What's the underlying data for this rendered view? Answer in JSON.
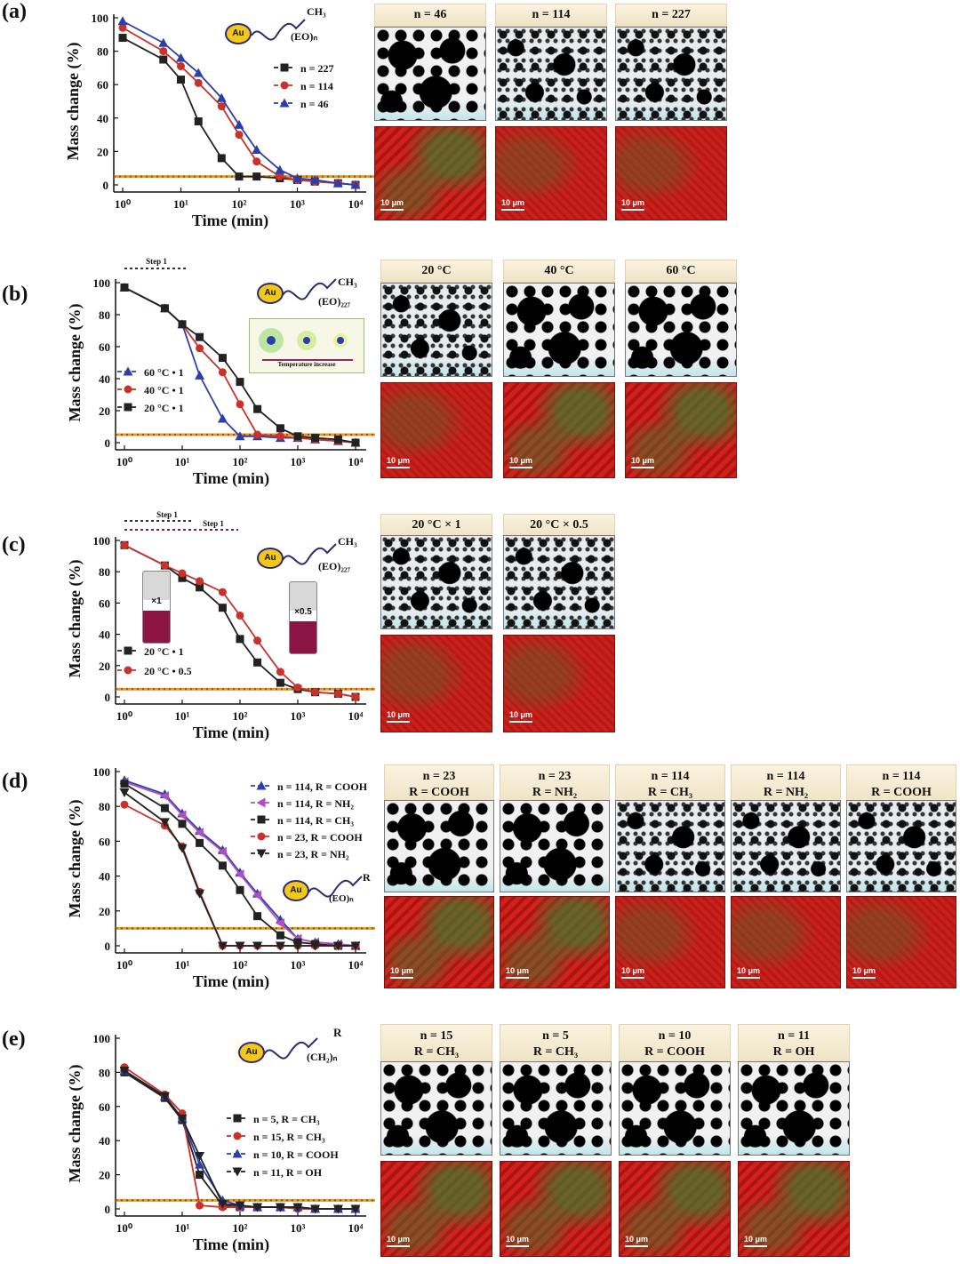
{
  "chart_data": [
    {
      "panel": "(a)",
      "type": "line",
      "xlabel": "Time (min)",
      "ylabel": "Mass change (%)",
      "xscale": "log",
      "x_ticks": [
        "10⁰",
        "10¹",
        "10²",
        "10³",
        "10⁴"
      ],
      "y_ticks": [
        "0",
        "20",
        "40",
        "60",
        "80",
        "100"
      ],
      "ylim": [
        0,
        100
      ],
      "reference_line": 5,
      "legend": [
        "n = 227",
        "n = 114",
        "n = 46"
      ],
      "series": [
        {
          "name": "n = 227",
          "color": "#222222",
          "marker": "square",
          "x": [
            1,
            5,
            10,
            20,
            50,
            100,
            200,
            500,
            1000,
            2000,
            5000,
            10000
          ],
          "y": [
            88,
            75,
            63,
            38,
            16,
            5,
            5,
            4,
            3,
            2,
            1,
            0
          ]
        },
        {
          "name": "n = 114",
          "color": "#c8322a",
          "marker": "circle",
          "x": [
            1,
            5,
            10,
            20,
            50,
            100,
            200,
            500,
            1000,
            2000,
            5000,
            10000
          ],
          "y": [
            94,
            80,
            71,
            61,
            47,
            30,
            14,
            5,
            3,
            2,
            1,
            0
          ]
        },
        {
          "name": "n = 46",
          "color": "#2c3fa8",
          "marker": "triangle",
          "x": [
            1,
            5,
            10,
            20,
            50,
            100,
            200,
            500,
            1000,
            2000,
            5000,
            10000
          ],
          "y": [
            98,
            85,
            76,
            67,
            52,
            36,
            21,
            9,
            4,
            3,
            1,
            0
          ]
        }
      ],
      "structure_label": [
        "Au",
        "CH₃",
        "(EO)ₙ"
      ],
      "micrograph_headers": [
        "n = 46",
        "n = 114",
        "n = 227"
      ]
    },
    {
      "panel": "(b)",
      "type": "line",
      "xlabel": "Time (min)",
      "ylabel": "Mass change (%)",
      "xscale": "log",
      "x_ticks": [
        "10⁰",
        "10¹",
        "10²",
        "10³",
        "10⁴"
      ],
      "y_ticks": [
        "0",
        "20",
        "40",
        "60",
        "80",
        "100"
      ],
      "ylim": [
        0,
        100
      ],
      "reference_line": 5,
      "step_label": "Step 1",
      "legend": [
        "60 °C • 1",
        "40 °C • 1",
        "20 °C • 1"
      ],
      "series": [
        {
          "name": "60 °C • 1",
          "color": "#2c3fa8",
          "marker": "triangle",
          "x": [
            1,
            5,
            10,
            20,
            50,
            100,
            200,
            500,
            1000,
            2000,
            5000,
            10000
          ],
          "y": [
            97,
            84,
            74,
            42,
            15,
            4,
            4,
            3,
            3,
            2,
            1,
            0
          ]
        },
        {
          "name": "40 °C • 1",
          "color": "#c8322a",
          "marker": "circle",
          "x": [
            1,
            5,
            10,
            20,
            50,
            100,
            200,
            500,
            1000,
            2000,
            5000,
            10000
          ],
          "y": [
            97,
            84,
            74,
            59,
            44,
            24,
            5,
            4,
            3,
            2,
            1,
            0
          ]
        },
        {
          "name": "20 °C • 1",
          "color": "#222222",
          "marker": "square",
          "x": [
            1,
            5,
            10,
            20,
            50,
            100,
            200,
            500,
            1000,
            2000,
            5000,
            10000
          ],
          "y": [
            97,
            84,
            74,
            66,
            53,
            38,
            21,
            9,
            4,
            3,
            2,
            0
          ]
        }
      ],
      "structure_label": [
        "Au",
        "CH₃",
        "(EO)₂₂₇"
      ],
      "inset_caption": "Temperature increase",
      "micrograph_headers": [
        "20 °C",
        "40 °C",
        "60 °C"
      ]
    },
    {
      "panel": "(c)",
      "type": "line",
      "xlabel": "Time (min)",
      "ylabel": "Mass change (%)",
      "xscale": "log",
      "x_ticks": [
        "10⁰",
        "10¹",
        "10²",
        "10³",
        "10⁴"
      ],
      "y_ticks": [
        "0",
        "20",
        "40",
        "60",
        "80",
        "100"
      ],
      "ylim": [
        0,
        100
      ],
      "reference_line": 5,
      "step_labels": [
        "Step 1",
        "Step 1"
      ],
      "legend": [
        "20 °C • 1",
        "20 °C • 0.5"
      ],
      "vial_labels": [
        "×1",
        "×0.5"
      ],
      "series": [
        {
          "name": "20 °C • 1",
          "color": "#222222",
          "marker": "square",
          "x": [
            1,
            5,
            10,
            20,
            50,
            100,
            200,
            500,
            1000,
            2000,
            5000,
            10000
          ],
          "y": [
            97,
            84,
            76,
            70,
            57,
            37,
            22,
            9,
            5,
            3,
            2,
            0
          ]
        },
        {
          "name": "20 °C • 0.5",
          "color": "#c8322a",
          "marker": "circle",
          "x": [
            1,
            5,
            10,
            20,
            50,
            100,
            200,
            500,
            1000,
            2000,
            5000,
            10000
          ],
          "y": [
            97,
            84,
            79,
            74,
            67,
            52,
            36,
            16,
            6,
            3,
            2,
            0
          ]
        }
      ],
      "structure_label": [
        "Au",
        "CH₃",
        "(EO)₂₂₇"
      ],
      "micrograph_headers": [
        "20 °C × 1",
        "20 °C × 0.5"
      ]
    },
    {
      "panel": "(d)",
      "type": "line",
      "xlabel": "Time (min)",
      "ylabel": "Mass change (%)",
      "xscale": "log",
      "x_ticks": [
        "10⁰",
        "10¹",
        "10²",
        "10³",
        "10⁴"
      ],
      "y_ticks": [
        "0",
        "20",
        "40",
        "60",
        "80",
        "100"
      ],
      "ylim": [
        0,
        100
      ],
      "reference_line": 10,
      "legend": [
        "n = 114, R = COOH",
        "n = 114, R = NH₂",
        "n = 114, R = CH₃",
        "n = 23, R = COOH",
        "n = 23, R = NH₂"
      ],
      "series": [
        {
          "name": "n = 114, R = COOH",
          "color": "#2c3fa8",
          "marker": "triangle",
          "x": [
            1,
            5,
            10,
            20,
            50,
            100,
            200,
            500,
            1000,
            2000,
            5000,
            10000
          ],
          "y": [
            95,
            87,
            76,
            66,
            55,
            42,
            30,
            15,
            4,
            2,
            1,
            0
          ]
        },
        {
          "name": "n = 114, R = NH₂",
          "color": "#b04fc0",
          "marker": "triangle-left",
          "x": [
            1,
            5,
            10,
            20,
            50,
            100,
            200,
            500,
            1000,
            2000,
            5000,
            10000
          ],
          "y": [
            94,
            86,
            75,
            65,
            54,
            41,
            29,
            13,
            4,
            2,
            1,
            0
          ]
        },
        {
          "name": "n = 114, R = CH₃",
          "color": "#222222",
          "marker": "square",
          "x": [
            1,
            5,
            10,
            20,
            50,
            100,
            200,
            500,
            1000,
            2000,
            5000,
            10000
          ],
          "y": [
            93,
            79,
            70,
            59,
            46,
            32,
            17,
            6,
            2,
            1,
            0,
            0
          ]
        },
        {
          "name": "n = 23, R = COOH",
          "color": "#c8322a",
          "marker": "circle",
          "x": [
            1,
            5,
            10,
            20,
            50,
            100,
            200,
            500,
            1000,
            2000,
            5000,
            10000
          ],
          "y": [
            81,
            69,
            57,
            31,
            0,
            0,
            0,
            0,
            0,
            0,
            0,
            0
          ]
        },
        {
          "name": "n = 23, R = NH₂",
          "color": "#222222",
          "marker": "triangle-down",
          "x": [
            1,
            5,
            10,
            20,
            50,
            100,
            200,
            500,
            1000,
            2000,
            5000,
            10000
          ],
          "y": [
            88,
            71,
            56,
            30,
            0,
            0,
            0,
            0,
            0,
            0,
            0,
            0
          ]
        }
      ],
      "structure_label": [
        "Au",
        "R",
        "(EO)ₙ"
      ],
      "micrograph_headers": [
        [
          "n = 23",
          "R = COOH"
        ],
        [
          "n = 23",
          "R = NH₂"
        ],
        [
          "n = 114",
          "R = CH₃"
        ],
        [
          "n = 114",
          "R = NH₂"
        ],
        [
          "n = 114",
          "R = COOH"
        ]
      ]
    },
    {
      "panel": "(e)",
      "type": "line",
      "xlabel": "Time (min)",
      "ylabel": "Mass change (%)",
      "xscale": "log",
      "x_ticks": [
        "10⁰",
        "10¹",
        "10²",
        "10³",
        "10⁴"
      ],
      "y_ticks": [
        "0",
        "20",
        "40",
        "60",
        "80",
        "100"
      ],
      "ylim": [
        0,
        100
      ],
      "reference_line": 5,
      "legend": [
        "n = 5,  R = CH₃",
        "n = 15, R = CH₃",
        "n = 10, R = COOH",
        "n = 11, R = OH"
      ],
      "series": [
        {
          "name": "n = 5,  R = CH₃",
          "color": "#222222",
          "marker": "square",
          "x": [
            1,
            5,
            10,
            20,
            50,
            100,
            200,
            500,
            1000,
            2000,
            5000,
            10000
          ],
          "y": [
            80,
            65,
            52,
            20,
            2,
            1,
            1,
            1,
            1,
            0,
            0,
            0
          ]
        },
        {
          "name": "n = 15, R = CH₃",
          "color": "#c8322a",
          "marker": "circle",
          "x": [
            1,
            5,
            10,
            20,
            50,
            100,
            200,
            500,
            1000,
            2000,
            5000,
            10000
          ],
          "y": [
            83,
            67,
            56,
            2,
            1,
            1,
            1,
            1,
            0,
            0,
            0,
            0
          ]
        },
        {
          "name": "n = 10, R = COOH",
          "color": "#2c3fa8",
          "marker": "triangle",
          "x": [
            1,
            5,
            10,
            20,
            50,
            100,
            200,
            500,
            1000,
            2000,
            5000,
            10000
          ],
          "y": [
            81,
            66,
            53,
            26,
            5,
            2,
            1,
            1,
            1,
            0,
            0,
            0
          ]
        },
        {
          "name": "n = 11, R = OH",
          "color": "#222222",
          "marker": "triangle-down",
          "x": [
            1,
            5,
            10,
            20,
            50,
            100,
            200,
            500,
            1000,
            2000,
            5000,
            10000
          ],
          "y": [
            81,
            66,
            53,
            31,
            3,
            2,
            1,
            1,
            1,
            0,
            0,
            0
          ]
        }
      ],
      "structure_label": [
        "Au",
        "R",
        "(CH₂)ₙ"
      ],
      "micrograph_headers": [
        [
          "n = 15",
          "R = CH₃"
        ],
        [
          "n = 5",
          "R = CH₃"
        ],
        [
          "n = 10",
          "R = COOH"
        ],
        [
          "n = 11",
          "R = OH"
        ]
      ]
    }
  ],
  "panel_labels": [
    "(a)",
    "(b)",
    "(c)",
    "(d)",
    "(e)"
  ],
  "scale_bar": "10 μm",
  "colors": {
    "ref_line": "#d9a21b",
    "ref_dots": "#c8322a",
    "header_bg": "#f5ead0"
  }
}
